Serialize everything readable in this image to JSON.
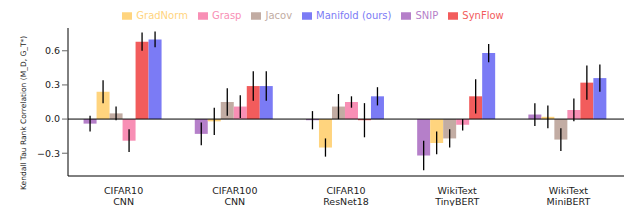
{
  "chart_data": {
    "type": "bar",
    "y_label": "Kendall Tau Rank Correlation (M_D, G_T*)",
    "categories": [
      "CIFAR10\nCNN",
      "CIFAR100\nCNN",
      "CIFAR10\nResNet18",
      "WikiText\nTinyBERT",
      "WikiText\nMiniBERT"
    ],
    "series": [
      {
        "name": "SNIP",
        "color": "#b57fc9",
        "values": [
          -0.04,
          -0.13,
          -0.01,
          -0.32,
          0.04
        ],
        "errors": [
          0.07,
          0.1,
          0.08,
          0.13,
          0.1
        ]
      },
      {
        "name": "GradNorm",
        "color": "#ffd47e",
        "values": [
          0.24,
          -0.02,
          -0.25,
          -0.21,
          0.02
        ],
        "errors": [
          0.1,
          0.12,
          0.08,
          0.1,
          0.1
        ]
      },
      {
        "name": "Jacov",
        "color": "#c2aca3",
        "values": [
          0.05,
          0.15,
          0.11,
          -0.17,
          -0.18
        ],
        "errors": [
          0.06,
          0.12,
          0.11,
          0.08,
          0.1
        ]
      },
      {
        "name": "Grasp",
        "color": "#f88fb5",
        "values": [
          -0.19,
          0.11,
          0.15,
          -0.05,
          0.08
        ],
        "errors": [
          0.1,
          0.1,
          0.05,
          0.05,
          0.1
        ]
      },
      {
        "name": "SynFlow",
        "color": "#f25c5c",
        "values": [
          0.68,
          0.29,
          -0.01,
          0.2,
          0.32
        ],
        "errors": [
          0.08,
          0.13,
          0.15,
          0.15,
          0.15
        ]
      },
      {
        "name": "Manifold (ours)",
        "color": "#7b7bf5",
        "values": [
          0.7,
          0.29,
          0.2,
          0.58,
          0.36
        ],
        "errors": [
          0.07,
          0.13,
          0.08,
          0.08,
          0.12
        ]
      }
    ],
    "ylim": [
      -0.5,
      0.8
    ],
    "yticks": [
      {
        "value": -0.3,
        "label": "−0.3"
      },
      {
        "value": 0,
        "label": "0.0"
      },
      {
        "value": 0.3,
        "label": "0.3"
      },
      {
        "value": 0.6,
        "label": "0.6"
      }
    ],
    "legend": "top",
    "grid": false
  }
}
